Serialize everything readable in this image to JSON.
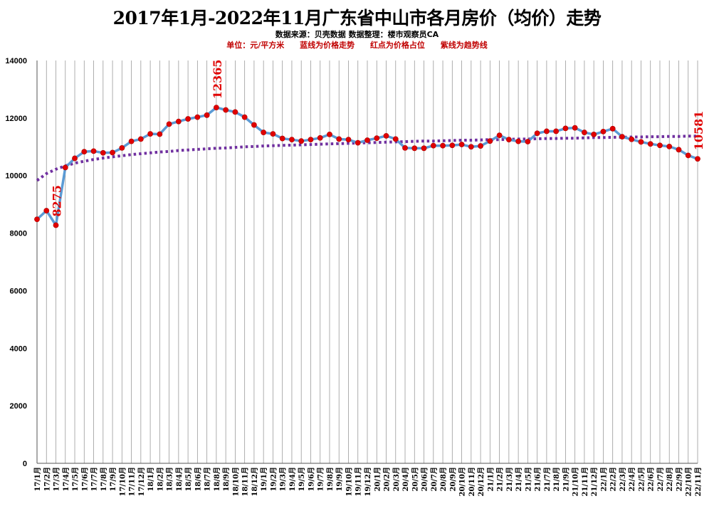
{
  "chart_data": {
    "type": "line",
    "title": "2017年1月-2022年11月广东省中山市各月房价（均价）走势",
    "subtitle": "数据来源：贝壳数据 数据整理：楼市观察员CA",
    "notes": [
      "单位：元/平方米",
      "蓝线为价格走势",
      "红点为价格占位",
      "紫线为趋势线"
    ],
    "categories": [
      "17/1月",
      "17/2月",
      "17/3月",
      "17/4月",
      "17/5月",
      "17/6月",
      "17/7月",
      "17/8月",
      "17/9月",
      "17/10月",
      "17/11月",
      "17/12月",
      "18/1月",
      "18/2月",
      "18/3月",
      "18/4月",
      "18/5月",
      "18/6月",
      "18/7月",
      "18/8月",
      "18/9月",
      "18/10月",
      "18/11月",
      "18/12月",
      "19/1月",
      "19/2月",
      "19/3月",
      "19/4月",
      "19/5月",
      "19/6月",
      "19/7月",
      "19/8月",
      "19/9月",
      "19/10月",
      "19/11月",
      "19/12月",
      "20/1月",
      "20/2月",
      "20/3月",
      "20/4月",
      "20/5月",
      "20/6月",
      "20/7月",
      "20/8月",
      "20/9月",
      "20/10月",
      "20/11月",
      "20/12月",
      "21/1月",
      "21/2月",
      "21/3月",
      "21/4月",
      "21/5月",
      "21/6月",
      "21/7月",
      "21/8月",
      "21/9月",
      "21/10月",
      "21/11月",
      "21/12月",
      "22/1月",
      "22/2月",
      "22/3月",
      "22/4月",
      "22/5月",
      "22/6月",
      "22/7月",
      "22/8月",
      "22/9月",
      "22/10月",
      "22/11月"
    ],
    "series": [
      {
        "values": [
          8480,
          8780,
          8275,
          10280,
          10600,
          10830,
          10850,
          10790,
          10800,
          10960,
          11190,
          11270,
          11450,
          11440,
          11790,
          11880,
          11970,
          12030,
          12100,
          12365,
          12280,
          12210,
          12030,
          11760,
          11500,
          11450,
          11290,
          11250,
          11200,
          11250,
          11310,
          11430,
          11270,
          11250,
          11140,
          11230,
          11300,
          11380,
          11270,
          10960,
          10950,
          10950,
          11040,
          11040,
          11050,
          11080,
          11000,
          11030,
          11200,
          11400,
          11250,
          11190,
          11180,
          11470,
          11540,
          11540,
          11640,
          11660,
          11500,
          11430,
          11530,
          11630,
          11350,
          11260,
          11170,
          11100,
          11050,
          11010,
          10900,
          10700,
          10581
        ],
        "color": "#5b9bd5",
        "marker_color": "#e00000"
      },
      {
        "values": [
          9830,
          10070,
          10220,
          10340,
          10430,
          10500,
          10560,
          10610,
          10650,
          10690,
          10730,
          10760,
          10790,
          10820,
          10840,
          10870,
          10890,
          10910,
          10930,
          10950,
          10960,
          10980,
          11000,
          11010,
          11030,
          11040,
          11050,
          11060,
          11070,
          11080,
          11090,
          11100,
          11110,
          11120,
          11130,
          11140,
          11150,
          11160,
          11170,
          11180,
          11190,
          11200,
          11200,
          11210,
          11220,
          11230,
          11230,
          11240,
          11250,
          11250,
          11260,
          11270,
          11270,
          11280,
          11290,
          11290,
          11300,
          11300,
          11310,
          11320,
          11320,
          11330,
          11330,
          11340,
          11340,
          11350,
          11350,
          11360,
          11360,
          11370,
          11370
        ],
        "color": "#7030a0",
        "style": "dotted"
      }
    ],
    "annotations": [
      {
        "index": 2,
        "label": "8275"
      },
      {
        "index": 19,
        "label": "12365"
      },
      {
        "index": 70,
        "label": "10581"
      }
    ],
    "y_ticks": [
      "0",
      "2000",
      "4000",
      "6000",
      "8000",
      "10000",
      "12000",
      "14000"
    ],
    "ylim": [
      0,
      14000
    ],
    "xlabel": "",
    "ylabel": "",
    "grid": "vertical",
    "legend": "none"
  }
}
